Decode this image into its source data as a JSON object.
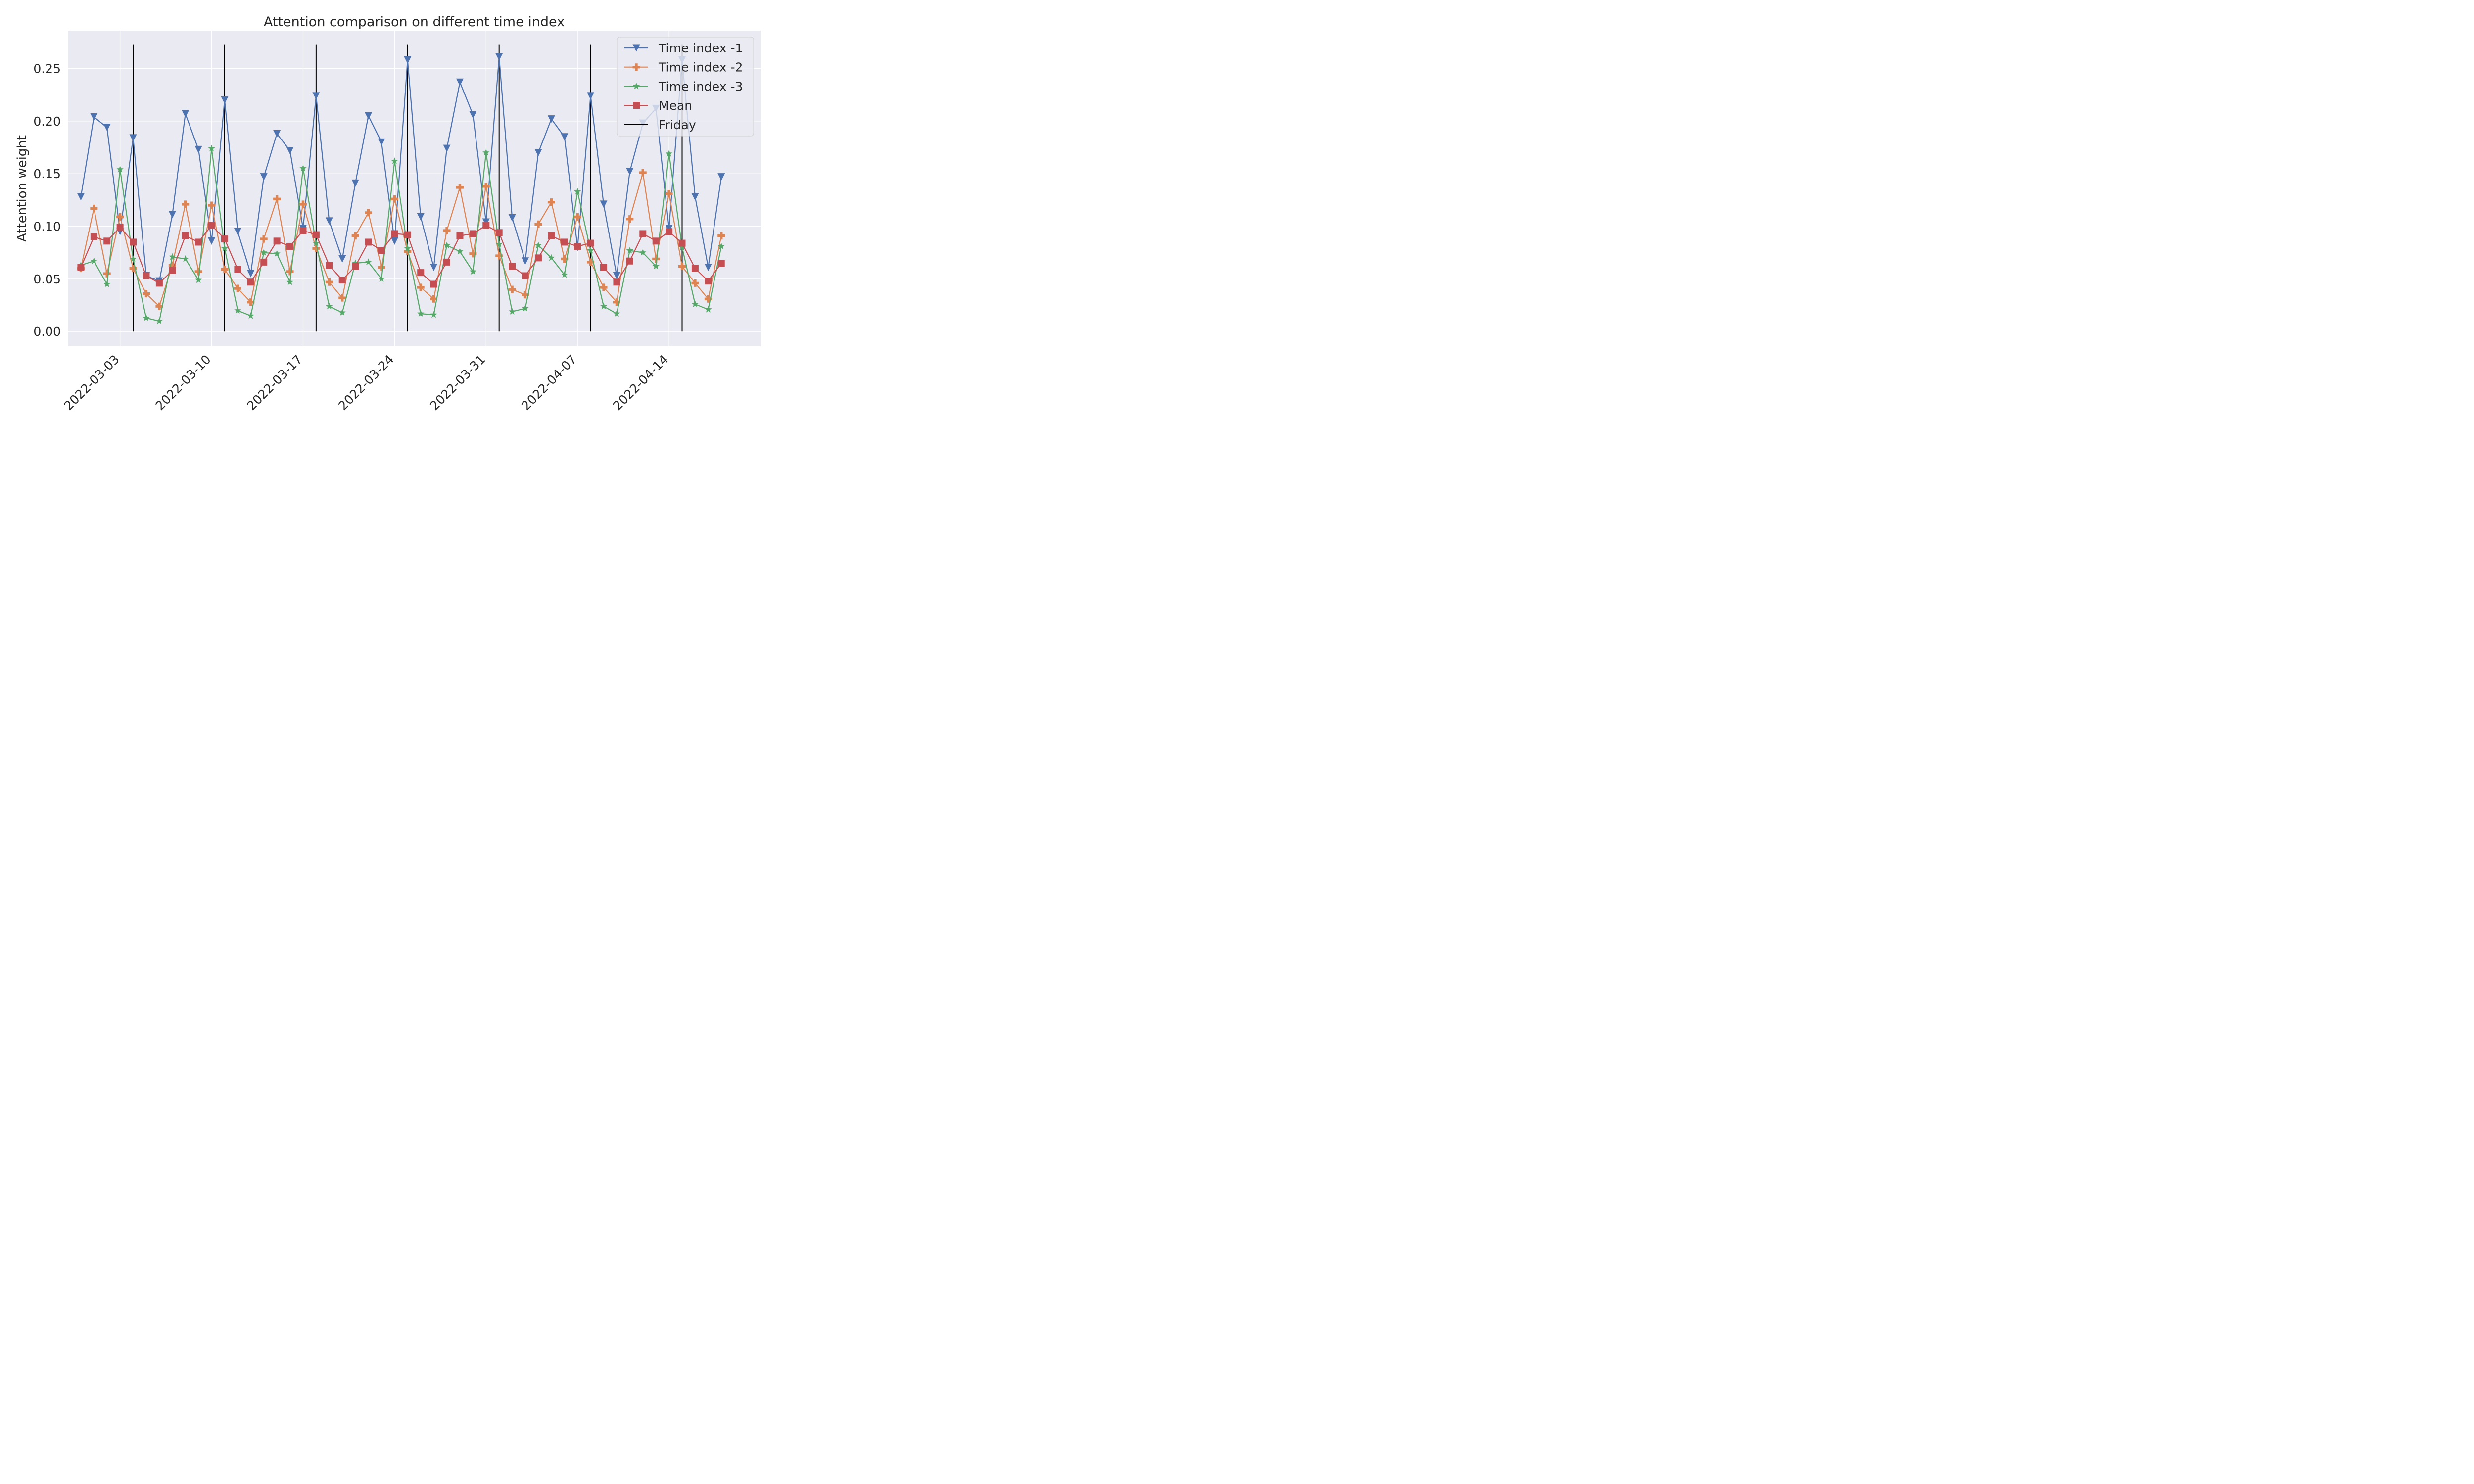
{
  "chart_data": {
    "type": "line",
    "title": "Attention comparison on different time index",
    "xlabel": "",
    "ylabel": "Attention weight",
    "x_dates": [
      "2022-02-28",
      "2022-03-01",
      "2022-03-02",
      "2022-03-03",
      "2022-03-04",
      "2022-03-05",
      "2022-03-06",
      "2022-03-07",
      "2022-03-08",
      "2022-03-09",
      "2022-03-10",
      "2022-03-11",
      "2022-03-12",
      "2022-03-13",
      "2022-03-14",
      "2022-03-15",
      "2022-03-16",
      "2022-03-17",
      "2022-03-18",
      "2022-03-19",
      "2022-03-20",
      "2022-03-21",
      "2022-03-22",
      "2022-03-23",
      "2022-03-24",
      "2022-03-25",
      "2022-03-26",
      "2022-03-27",
      "2022-03-28",
      "2022-03-29",
      "2022-03-30",
      "2022-03-31",
      "2022-04-01",
      "2022-04-02",
      "2022-04-03",
      "2022-04-04",
      "2022-04-05",
      "2022-04-06",
      "2022-04-07",
      "2022-04-08",
      "2022-04-09",
      "2022-04-10",
      "2022-04-11",
      "2022-04-12",
      "2022-04-13",
      "2022-04-14",
      "2022-04-15",
      "2022-04-16",
      "2022-04-17",
      "2022-04-18",
      "2022-04-19",
      "2022-04-20"
    ],
    "xlim": [
      "2022-02-27",
      "2022-04-21"
    ],
    "ylim": [
      -0.014,
      0.286
    ],
    "y_ticks": [
      0.0,
      0.05,
      0.1,
      0.15,
      0.2,
      0.25
    ],
    "y_tick_labels": [
      "0.00",
      "0.05",
      "0.10",
      "0.15",
      "0.20",
      "0.25"
    ],
    "x_ticks": [
      "2022-03-03",
      "2022-03-10",
      "2022-03-17",
      "2022-03-24",
      "2022-03-31",
      "2022-04-07",
      "2022-04-14"
    ],
    "x_tick_labels": [
      "2022-03-03",
      "2022-03-10",
      "2022-03-17",
      "2022-03-24",
      "2022-03-31",
      "2022-04-07",
      "2022-04-14"
    ],
    "grid": true,
    "legend_position": "top-right",
    "series": [
      {
        "name": "Time index -1",
        "color": "#4c72b0",
        "marker": "triangle-down",
        "values": [
          0.128,
          0.204,
          0.194,
          0.095,
          0.184,
          0.053,
          0.048,
          0.111,
          0.207,
          0.173,
          0.086,
          0.22,
          0.095,
          0.055,
          0.147,
          0.188,
          0.172,
          0.098,
          0.224,
          0.105,
          0.069,
          0.141,
          0.205,
          0.18,
          0.086,
          0.258,
          0.109,
          0.061,
          0.174,
          0.237,
          0.206,
          0.104,
          0.261,
          0.108,
          0.067,
          0.17,
          0.202,
          0.185,
          0.08,
          0.224,
          0.121,
          0.053,
          0.152,
          0.198,
          0.212,
          0.098,
          0.258,
          0.128,
          0.061,
          0.147,
          null,
          null
        ]
      },
      {
        "name": "Time index -2",
        "color": "#dd8452",
        "marker": "plus",
        "values": [
          0.06,
          0.117,
          0.055,
          0.109,
          0.06,
          0.036,
          0.024,
          0.063,
          0.121,
          0.057,
          0.12,
          0.059,
          0.041,
          0.028,
          0.088,
          0.126,
          0.057,
          0.121,
          0.079,
          0.047,
          0.032,
          0.091,
          0.113,
          0.061,
          0.126,
          0.076,
          0.042,
          0.031,
          0.096,
          0.137,
          0.074,
          0.138,
          0.072,
          0.04,
          0.035,
          0.102,
          0.123,
          0.069,
          0.109,
          0.066,
          0.042,
          0.028,
          0.107,
          0.151,
          0.069,
          0.131,
          0.062,
          0.046,
          0.031,
          0.091,
          null,
          null
        ]
      },
      {
        "name": "Time index -3",
        "color": "#55a868",
        "marker": "star",
        "values": [
          0.063,
          0.067,
          0.045,
          0.154,
          0.069,
          0.013,
          0.01,
          0.071,
          0.069,
          0.049,
          0.174,
          0.079,
          0.02,
          0.015,
          0.075,
          0.074,
          0.047,
          0.155,
          0.084,
          0.024,
          0.018,
          0.065,
          0.066,
          0.05,
          0.162,
          0.079,
          0.017,
          0.016,
          0.082,
          0.076,
          0.057,
          0.17,
          0.083,
          0.019,
          0.022,
          0.082,
          0.07,
          0.054,
          0.133,
          0.077,
          0.024,
          0.017,
          0.077,
          0.075,
          0.062,
          0.169,
          0.08,
          0.026,
          0.021,
          0.081,
          null,
          null
        ]
      },
      {
        "name": "Mean",
        "color": "#c44e52",
        "marker": "square",
        "values": [
          0.061,
          0.09,
          0.086,
          0.099,
          0.085,
          0.053,
          0.046,
          0.058,
          0.091,
          0.085,
          0.101,
          0.088,
          0.059,
          0.047,
          0.066,
          0.086,
          0.081,
          0.096,
          0.092,
          0.063,
          0.049,
          0.062,
          0.085,
          0.077,
          0.093,
          0.092,
          0.056,
          0.045,
          0.066,
          0.091,
          0.093,
          0.101,
          0.094,
          0.062,
          0.053,
          0.07,
          0.091,
          0.085,
          0.081,
          0.084,
          0.061,
          0.047,
          0.067,
          0.093,
          0.086,
          0.095,
          0.084,
          0.06,
          0.048,
          0.065,
          null,
          null
        ]
      }
    ],
    "vlines": {
      "name": "Friday",
      "color": "#000000",
      "dates": [
        "2022-03-04",
        "2022-03-11",
        "2022-03-18",
        "2022-03-25",
        "2022-04-01",
        "2022-04-08",
        "2022-04-15"
      ],
      "ymin": 0.0,
      "ymax": 0.273
    }
  }
}
